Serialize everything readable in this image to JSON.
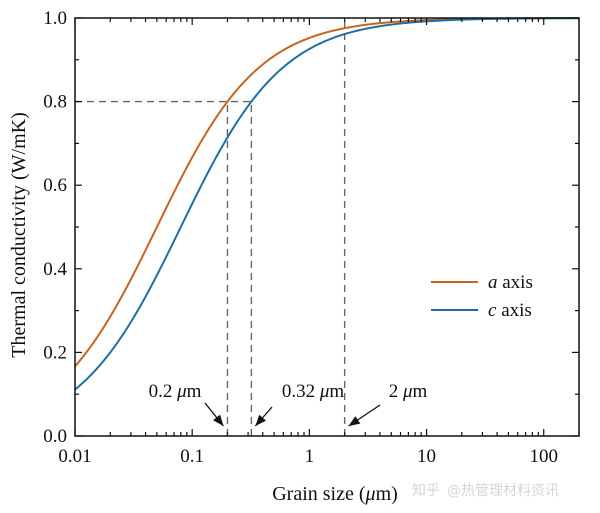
{
  "chart_data": {
    "type": "line",
    "xscale": "log",
    "xlim": [
      0.01,
      200
    ],
    "ylim": [
      0.0,
      1.0
    ],
    "xlabel": {
      "prefix": "Grain size (",
      "unit_italic": "μ",
      "unit_rest": "m)"
    },
    "ylabel": "Thermal conductivity (W/mK)",
    "x_ticks": [
      {
        "value": 0.01,
        "label": "0.01"
      },
      {
        "value": 0.1,
        "label": "0.1"
      },
      {
        "value": 1,
        "label": "1"
      },
      {
        "value": 10,
        "label": "10"
      },
      {
        "value": 100,
        "label": "100"
      }
    ],
    "y_ticks": [
      {
        "value": 0.0,
        "label": "0.0"
      },
      {
        "value": 0.2,
        "label": "0.2"
      },
      {
        "value": 0.4,
        "label": "0.4"
      },
      {
        "value": 0.6,
        "label": "0.6"
      },
      {
        "value": 0.8,
        "label": "0.8"
      },
      {
        "value": 1.0,
        "label": "1.0"
      }
    ],
    "series": [
      {
        "name": "a axis",
        "italic": "a",
        "rest": " axis",
        "color": "#c8641e",
        "model": "1/(1+l/d)",
        "l": 0.05,
        "x": [
          0.01,
          0.02,
          0.05,
          0.1,
          0.2,
          0.5,
          1,
          2,
          5,
          10,
          20,
          50,
          100
        ],
        "y": [
          0.167,
          0.286,
          0.5,
          0.667,
          0.8,
          0.909,
          0.952,
          0.976,
          0.99,
          0.995,
          0.998,
          0.999,
          1.0
        ]
      },
      {
        "name": "c axis",
        "italic": "c",
        "rest": " axis",
        "color": "#1f6fa5",
        "model": "1/(1+l/d)",
        "l": 0.08,
        "x": [
          0.01,
          0.02,
          0.05,
          0.1,
          0.2,
          0.32,
          0.5,
          1,
          2,
          5,
          10,
          20,
          50,
          100
        ],
        "y": [
          0.111,
          0.2,
          0.385,
          0.556,
          0.714,
          0.8,
          0.862,
          0.926,
          0.962,
          0.984,
          0.992,
          0.996,
          0.998,
          0.999
        ]
      }
    ],
    "reference_lines": {
      "horizontal": {
        "y": 0.8,
        "x_end": 0.32
      },
      "vertical": [
        {
          "x": 0.2,
          "y_end": 0.8
        },
        {
          "x": 0.32,
          "y_end": 0.8
        },
        {
          "x": 2,
          "y_end": 1.0
        }
      ]
    },
    "annotations": [
      {
        "x": 0.2,
        "value": "0.2",
        "unit_italic": "μ",
        "unit_rest": "m"
      },
      {
        "x": 0.32,
        "value": "0.32",
        "unit_italic": "μ",
        "unit_rest": "m"
      },
      {
        "x": 2,
        "value": "2",
        "unit_italic": "μ",
        "unit_rest": "m"
      }
    ]
  },
  "watermark": {
    "brand": "知乎",
    "handle": "@热管理材料资讯"
  }
}
